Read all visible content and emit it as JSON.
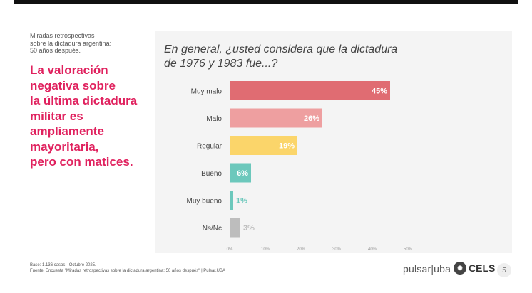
{
  "slide": {
    "subtitle": "Miradas retrospectivas\nsobre la dictadura argentina:\n50 años después.",
    "headline": "La valoración\nnegativa sobre\nla última dictadura\nmilitar es\nampliamente\nmayoritaria,\npero con matices.",
    "footer_base": "Base: 1.136 casos - Octubre 2025.",
    "footer_source": "Fuente: Encuesta \"Miradas retrospectivas sobre la dictadura argentina: 50 años después\" | Pulsar.UBA",
    "brand_pulsar": "pulsar|uba",
    "brand_cels": "CELS",
    "cels_icon": "cels-circle-logo",
    "page_number": "5"
  },
  "chart_data": {
    "type": "bar",
    "orientation": "horizontal",
    "title": "En general, ¿usted considera que la dictadura\nde 1976 y 1983 fue...?",
    "categories": [
      "Muy malo",
      "Malo",
      "Regular",
      "Bueno",
      "Muy bueno",
      "Ns/Nc"
    ],
    "values": [
      45,
      26,
      19,
      6,
      1,
      3
    ],
    "value_labels": [
      "45%",
      "26%",
      "19%",
      "6%",
      "1%",
      "3%"
    ],
    "colors": [
      "#e06c72",
      "#ee9fa0",
      "#fbd56a",
      "#6cc8bc",
      "#6cc8bc",
      "#bdbdbd"
    ],
    "label_colors": [
      "#ffffff",
      "#ffffff",
      "#ffffff",
      "#ffffff",
      "#6cc8bc",
      "#bdbdbd"
    ],
    "xlim": [
      0,
      50
    ],
    "xticks": [
      0,
      10,
      20,
      30,
      40,
      50
    ],
    "xtick_labels": [
      "0%",
      "10%",
      "20%",
      "30%",
      "40%",
      "50%"
    ],
    "grid": false,
    "legend": "none"
  }
}
